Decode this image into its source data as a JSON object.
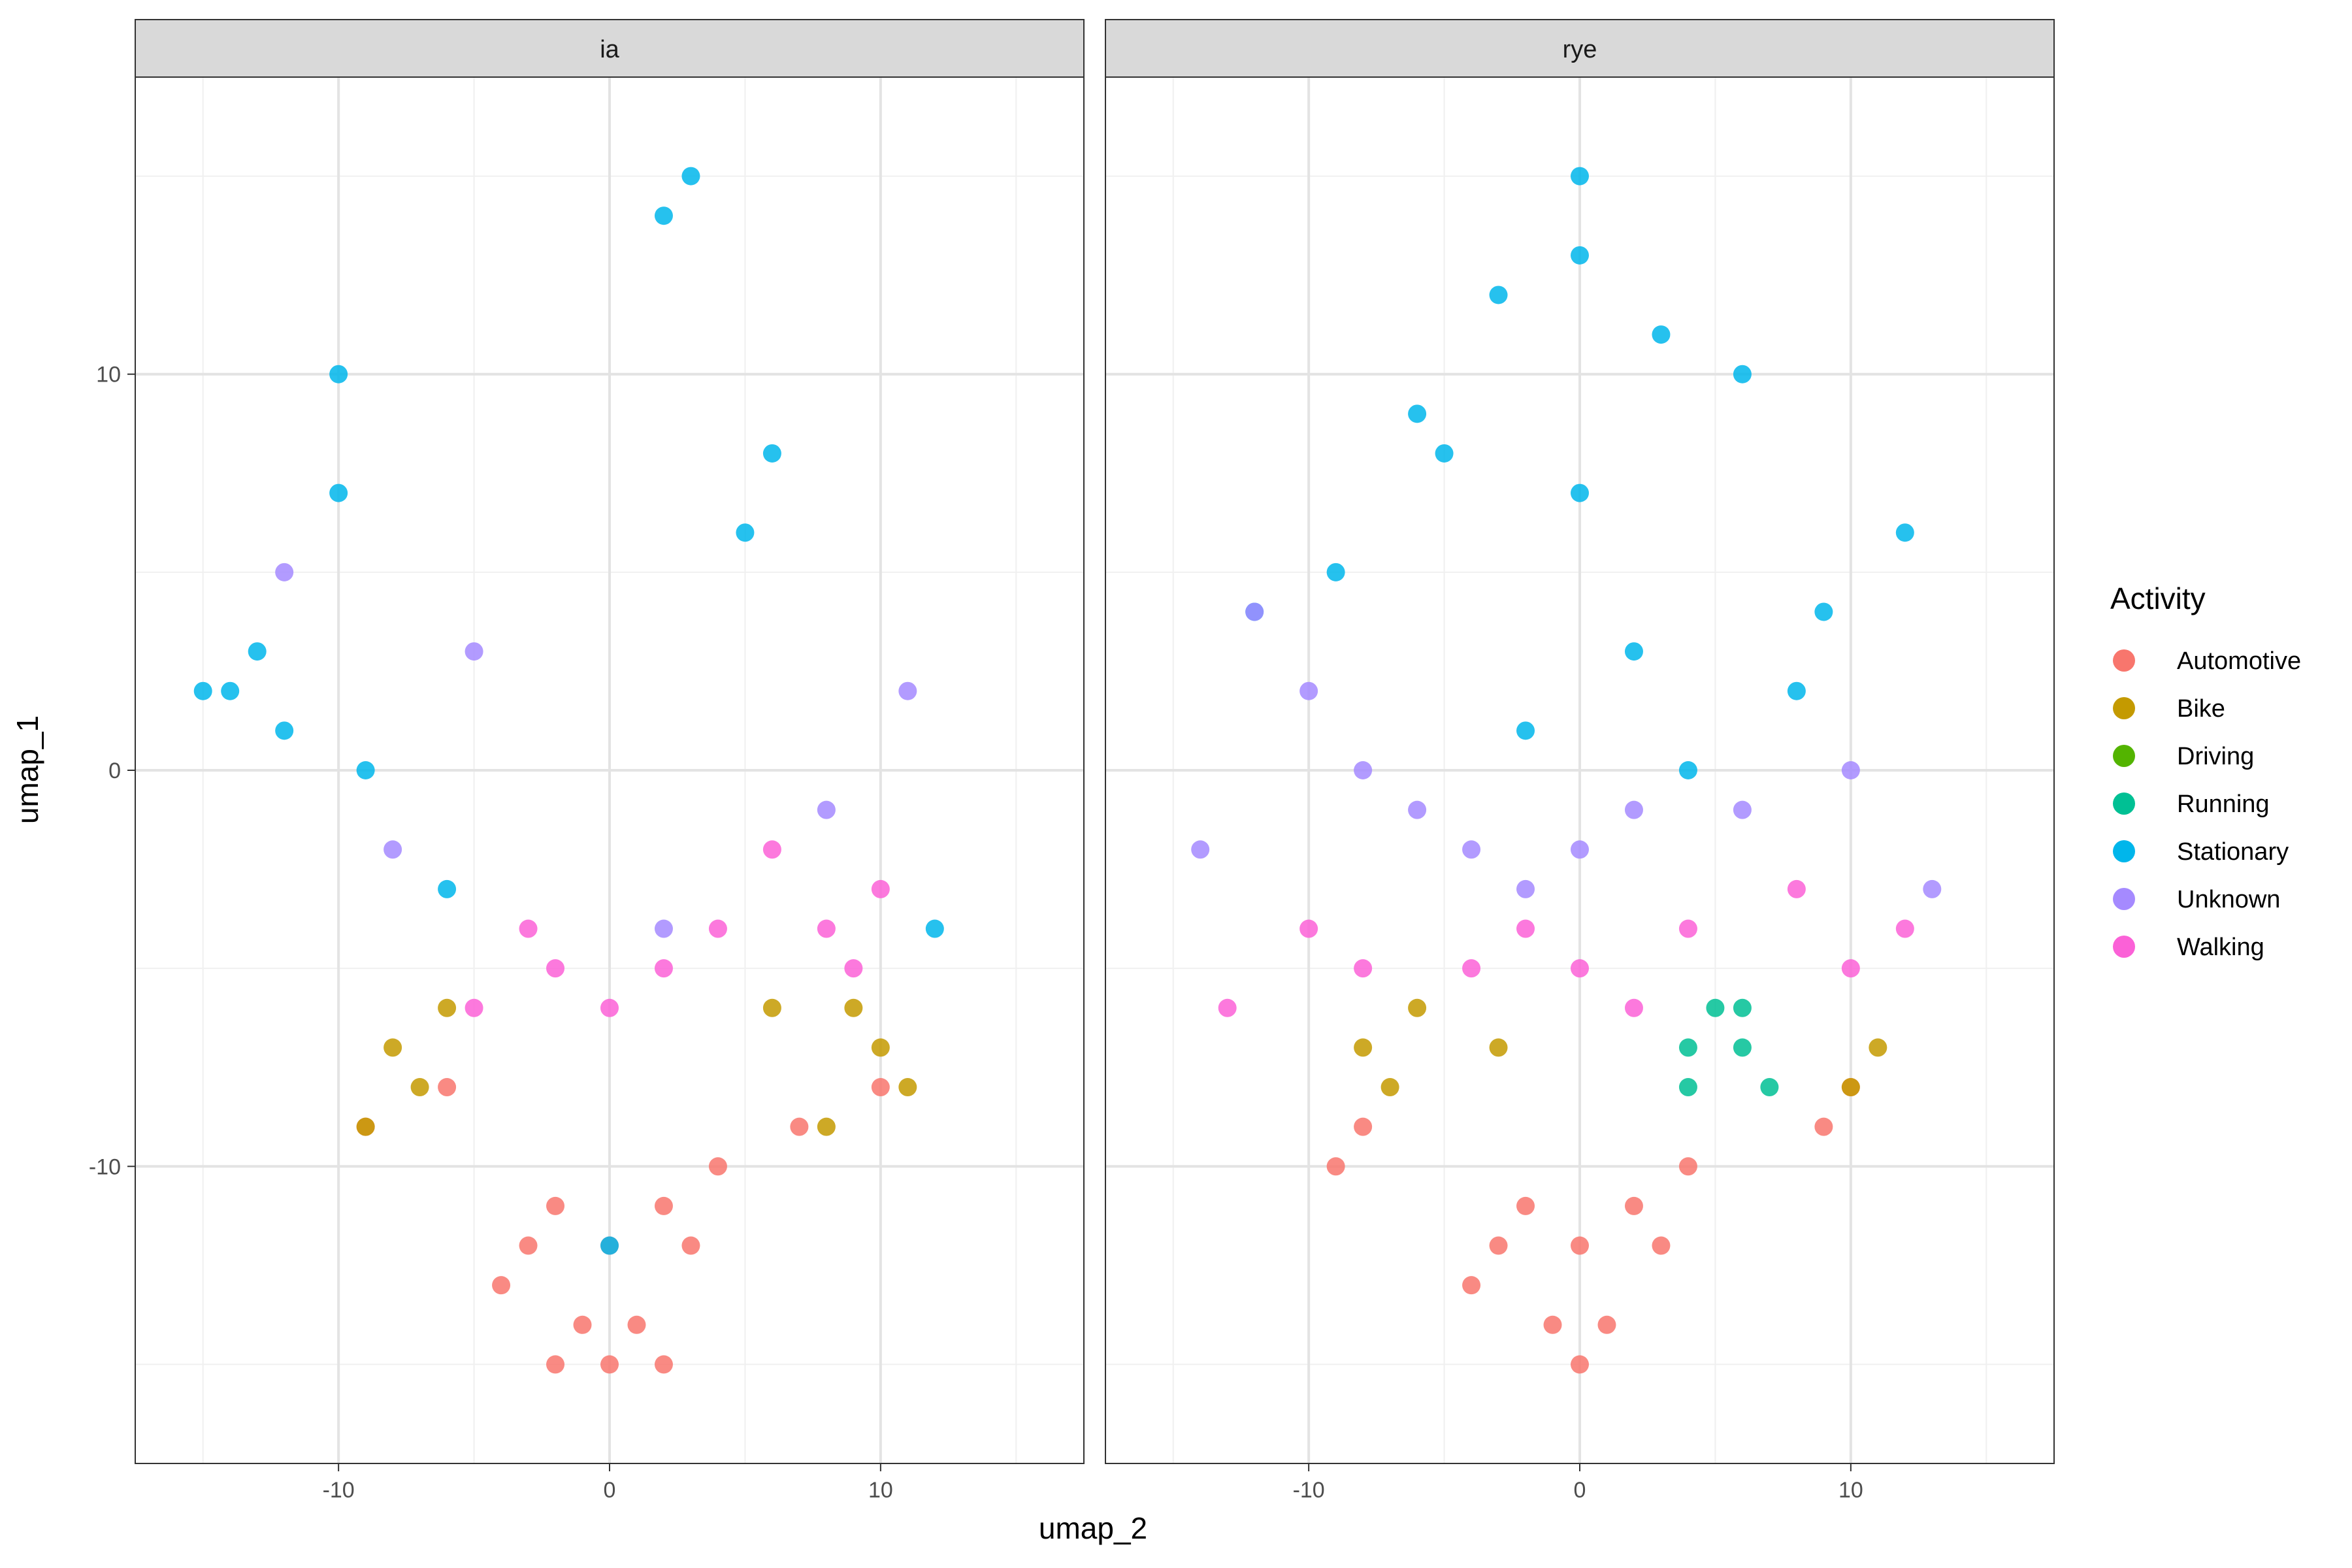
{
  "chart_data": {
    "type": "scatter",
    "facets": [
      "ia",
      "rye"
    ],
    "xlabel": "umap_2",
    "ylabel": "umap_1",
    "xlim": [
      -17.5,
      17.5
    ],
    "ylim": [
      -17.5,
      17.5
    ],
    "x_ticks": [
      -10,
      0,
      10
    ],
    "x_tick_labels": [
      "-10",
      "0",
      "10"
    ],
    "y_ticks": [
      10,
      0,
      -10
    ],
    "y_tick_labels": [
      "10",
      "0",
      "-10"
    ],
    "grid": true,
    "legend": {
      "title": "Activity",
      "position": "right",
      "entries": [
        "Automotive",
        "Bike",
        "Driving",
        "Running",
        "Stationary",
        "Unknown",
        "Walking"
      ]
    },
    "colors": {
      "Automotive": "#F8766D",
      "Bike": "#C49A00",
      "Driving": "#53B400",
      "Running": "#00C094",
      "Stationary": "#00B6EB",
      "Unknown": "#A58AFF",
      "Walking": "#FB61D7"
    },
    "series": [
      {
        "facet": "ia",
        "name": "Automotive",
        "x": [
          0,
          -2,
          2,
          -4,
          4,
          -1,
          1,
          -3,
          3,
          0,
          -2,
          2,
          -9,
          -6,
          7,
          10
        ],
        "y": [
          -12,
          -11,
          -11,
          -13,
          -10,
          -14,
          -14,
          -12,
          -12,
          -15,
          -15,
          -15,
          -9,
          -8,
          -9,
          -8
        ]
      },
      {
        "facet": "ia",
        "name": "Bike",
        "x": [
          -8,
          -7,
          -6,
          -9,
          9,
          10,
          11,
          6,
          8
        ],
        "y": [
          -7,
          -8,
          -6,
          -9,
          -6,
          -7,
          -8,
          -6,
          -9
        ]
      },
      {
        "facet": "ia",
        "name": "Stationary",
        "x": [
          -14,
          -13,
          -12,
          -15,
          -10,
          -10,
          5,
          6,
          3,
          2,
          -9,
          -6,
          12,
          0
        ],
        "y": [
          2,
          3,
          1,
          2,
          10,
          7,
          6,
          8,
          15,
          14,
          0,
          -3,
          -4,
          -12
        ]
      },
      {
        "facet": "ia",
        "name": "Unknown",
        "x": [
          -8,
          -5,
          2,
          8,
          -12,
          11
        ],
        "y": [
          -2,
          3,
          -4,
          -1,
          5,
          2
        ]
      },
      {
        "facet": "ia",
        "name": "Walking",
        "x": [
          -3,
          -2,
          0,
          2,
          4,
          8,
          9,
          10,
          -5,
          6
        ],
        "y": [
          -4,
          -5,
          -6,
          -5,
          -4,
          -4,
          -5,
          -3,
          -6,
          -2
        ]
      },
      {
        "facet": "rye",
        "name": "Automotive",
        "x": [
          0,
          -2,
          2,
          -4,
          4,
          -1,
          1,
          -3,
          3,
          0,
          -8,
          -9,
          9,
          10
        ],
        "y": [
          -12,
          -11,
          -11,
          -13,
          -10,
          -14,
          -14,
          -12,
          -12,
          -15,
          -9,
          -10,
          -9,
          -8
        ]
      },
      {
        "facet": "rye",
        "name": "Bike",
        "x": [
          -8,
          -7,
          -6,
          -3,
          10,
          11
        ],
        "y": [
          -7,
          -8,
          -6,
          -7,
          -8,
          -7
        ]
      },
      {
        "facet": "rye",
        "name": "Running",
        "x": [
          4,
          5,
          6,
          7,
          4,
          6
        ],
        "y": [
          -7,
          -6,
          -7,
          -8,
          -8,
          -6
        ]
      },
      {
        "facet": "rye",
        "name": "Stationary",
        "x": [
          0,
          -3,
          3,
          -6,
          6,
          9,
          -9,
          12,
          -12,
          0,
          2,
          -2,
          4,
          8,
          -5,
          0
        ],
        "y": [
          13,
          12,
          11,
          9,
          10,
          4,
          5,
          6,
          4,
          7,
          3,
          1,
          0,
          2,
          8,
          15
        ]
      },
      {
        "facet": "rye",
        "name": "Unknown",
        "x": [
          -14,
          -12,
          -10,
          -8,
          -6,
          -4,
          -2,
          0,
          2,
          6,
          10,
          13
        ],
        "y": [
          -2,
          4,
          2,
          0,
          -1,
          -2,
          -3,
          -2,
          -1,
          -1,
          0,
          -3
        ]
      },
      {
        "facet": "rye",
        "name": "Walking",
        "x": [
          -10,
          -8,
          -4,
          -2,
          0,
          2,
          4,
          8,
          10,
          12,
          -13
        ],
        "y": [
          -4,
          -5,
          -5,
          -4,
          -5,
          -6,
          -4,
          -3,
          -5,
          -4,
          -6
        ]
      }
    ]
  }
}
